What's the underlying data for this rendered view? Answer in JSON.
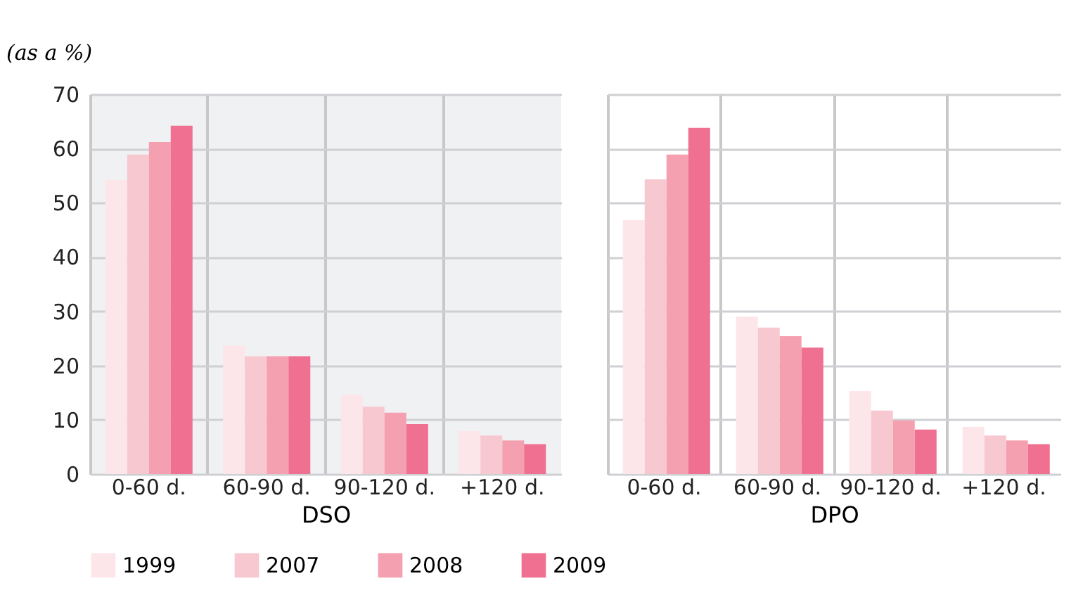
{
  "chart_data": [
    {
      "type": "bar",
      "ylabel": "(as a %)",
      "xlabel": "DSO",
      "categories": [
        "0-60 d.",
        "60-90 d.",
        "90-120 d.",
        "+120 d."
      ],
      "series": [
        {
          "name": "1999",
          "color": "#fce6ea",
          "values": [
            54.2,
            23.7,
            14.6,
            7.9
          ]
        },
        {
          "name": "2007",
          "color": "#f8c8d1",
          "values": [
            58.9,
            21.7,
            12.4,
            7.1
          ]
        },
        {
          "name": "2008",
          "color": "#f4a0b0",
          "values": [
            61.2,
            21.7,
            11.3,
            6.2
          ]
        },
        {
          "name": "2009",
          "color": "#ef7090",
          "values": [
            64.2,
            21.7,
            9.2,
            5.5
          ]
        }
      ],
      "ylim": [
        0,
        70
      ],
      "yticks": [
        0,
        10,
        20,
        30,
        40,
        50,
        60,
        70
      ],
      "grid": true,
      "legend": "bottom"
    },
    {
      "type": "bar",
      "xlabel": "DPO",
      "categories": [
        "0-60 d.",
        "60-90 d.",
        "90-120 d.",
        "+120 d."
      ],
      "series": [
        {
          "color": "#fce6ea",
          "values": [
            46.8,
            29.0,
            15.3,
            8.7
          ]
        },
        {
          "color": "#f8c8d1",
          "values": [
            54.3,
            27.0,
            11.7,
            7.1
          ]
        },
        {
          "color": "#f4a0b0",
          "values": [
            58.9,
            25.4,
            9.9,
            6.2
          ]
        },
        {
          "color": "#ef7090",
          "values": [
            63.8,
            23.3,
            8.2,
            5.5
          ]
        }
      ],
      "ylim": [
        0,
        70
      ],
      "yticks": [
        0,
        10,
        20,
        30,
        40,
        50,
        60,
        70
      ],
      "grid": true,
      "tick_labels": "x"
    }
  ]
}
